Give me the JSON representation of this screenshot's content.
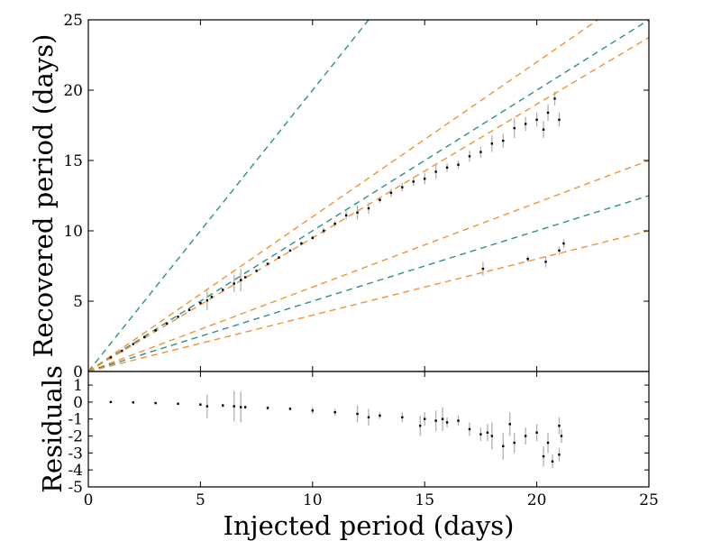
{
  "chart_data": {
    "type": "scatter",
    "xlabel": "Injected period (days)",
    "grid": false,
    "legend": "none",
    "panels": [
      {
        "id": "main",
        "ylabel": "Recovered period (days)",
        "xlim": [
          0,
          25
        ],
        "ylim": [
          0,
          25
        ],
        "xticks": [
          0,
          5,
          10,
          15,
          20,
          25
        ],
        "yticks": [
          0,
          5,
          10,
          15,
          20,
          25
        ],
        "reference_lines": [
          {
            "slope": 2.0,
            "color": "#2a9090"
          },
          {
            "slope": 1.1,
            "color": "#f29233"
          },
          {
            "slope": 1.0,
            "color": "#2a9090"
          },
          {
            "slope": 0.95,
            "color": "#f29233"
          },
          {
            "slope": 0.6,
            "color": "#f29233"
          },
          {
            "slope": 0.5,
            "color": "#2a9090"
          },
          {
            "slope": 0.4,
            "color": "#f29233"
          }
        ],
        "points": [
          [
            1.0,
            1.0,
            0.05
          ],
          [
            1.5,
            1.47,
            0.05
          ],
          [
            2.0,
            1.95,
            0.05
          ],
          [
            2.5,
            2.44,
            0.05
          ],
          [
            3.0,
            2.92,
            0.06
          ],
          [
            3.5,
            3.41,
            0.06
          ],
          [
            4.0,
            3.89,
            0.07
          ],
          [
            4.5,
            4.38,
            0.07
          ],
          [
            5.0,
            4.86,
            0.08
          ],
          [
            5.3,
            5.05,
            0.7
          ],
          [
            5.5,
            5.3,
            0.1
          ],
          [
            6.0,
            5.8,
            0.1
          ],
          [
            6.5,
            6.25,
            0.6
          ],
          [
            6.8,
            6.5,
            0.8
          ],
          [
            7.0,
            6.7,
            0.1
          ],
          [
            7.5,
            7.15,
            0.1
          ],
          [
            8.0,
            7.65,
            0.1
          ],
          [
            8.5,
            8.1,
            0.1
          ],
          [
            9.0,
            8.6,
            0.1
          ],
          [
            9.5,
            9.1,
            0.15
          ],
          [
            10.0,
            9.5,
            0.15
          ],
          [
            10.5,
            10.0,
            0.2
          ],
          [
            11.0,
            10.5,
            0.2
          ],
          [
            11.5,
            11.1,
            0.3
          ],
          [
            12.0,
            11.3,
            0.5
          ],
          [
            12.5,
            11.6,
            0.4
          ],
          [
            13.0,
            12.2,
            0.2
          ],
          [
            13.5,
            12.7,
            0.3
          ],
          [
            14.0,
            13.1,
            0.3
          ],
          [
            14.5,
            13.5,
            0.3
          ],
          [
            15.0,
            13.7,
            0.4
          ],
          [
            15.5,
            14.2,
            0.5
          ],
          [
            16.0,
            14.5,
            0.3
          ],
          [
            16.5,
            14.7,
            0.3
          ],
          [
            17.0,
            15.3,
            0.4
          ],
          [
            17.5,
            15.6,
            0.4
          ],
          [
            18.0,
            16.2,
            0.6
          ],
          [
            18.5,
            16.4,
            0.5
          ],
          [
            19.0,
            17.3,
            0.7
          ],
          [
            19.5,
            17.6,
            0.5
          ],
          [
            20.0,
            17.9,
            0.5
          ],
          [
            20.3,
            17.2,
            0.6
          ],
          [
            20.5,
            18.4,
            0.6
          ],
          [
            20.8,
            19.4,
            0.5
          ],
          [
            21.0,
            17.9,
            0.5
          ],
          [
            17.6,
            7.3,
            0.5
          ],
          [
            19.6,
            8.0,
            0.2
          ],
          [
            20.4,
            7.8,
            0.4
          ],
          [
            21.0,
            8.6,
            0.3
          ],
          [
            21.2,
            9.1,
            0.3
          ]
        ]
      },
      {
        "id": "residuals",
        "ylabel": "Residuals",
        "xlim": [
          0,
          25
        ],
        "ylim": [
          -5,
          1.8
        ],
        "yticks": [
          1,
          0,
          -1,
          -2,
          -3,
          -4,
          -5
        ],
        "points": [
          [
            1.0,
            0.0,
            0.05
          ],
          [
            2.0,
            -0.02,
            0.05
          ],
          [
            3.0,
            -0.06,
            0.06
          ],
          [
            4.0,
            -0.1,
            0.07
          ],
          [
            5.0,
            -0.15,
            0.08
          ],
          [
            5.3,
            -0.25,
            0.7
          ],
          [
            6.0,
            -0.2,
            0.1
          ],
          [
            6.5,
            -0.25,
            0.9
          ],
          [
            6.8,
            -0.3,
            0.9
          ],
          [
            7.0,
            -0.3,
            0.1
          ],
          [
            8.0,
            -0.35,
            0.1
          ],
          [
            9.0,
            -0.4,
            0.1
          ],
          [
            10.0,
            -0.5,
            0.2
          ],
          [
            11.0,
            -0.6,
            0.2
          ],
          [
            12.0,
            -0.7,
            0.5
          ],
          [
            12.5,
            -0.9,
            0.5
          ],
          [
            13.0,
            -0.8,
            0.2
          ],
          [
            14.0,
            -0.9,
            0.3
          ],
          [
            14.8,
            -1.4,
            0.6
          ],
          [
            15.0,
            -1.0,
            0.4
          ],
          [
            15.5,
            -1.1,
            0.6
          ],
          [
            15.8,
            -1.0,
            0.7
          ],
          [
            16.0,
            -1.2,
            0.3
          ],
          [
            16.5,
            -1.1,
            0.3
          ],
          [
            17.0,
            -1.6,
            0.4
          ],
          [
            17.5,
            -1.9,
            0.4
          ],
          [
            17.8,
            -1.8,
            0.5
          ],
          [
            18.0,
            -2.0,
            0.8
          ],
          [
            18.5,
            -2.6,
            0.8
          ],
          [
            18.8,
            -1.3,
            0.7
          ],
          [
            19.0,
            -2.4,
            0.6
          ],
          [
            19.5,
            -2.0,
            0.5
          ],
          [
            20.0,
            -1.8,
            0.5
          ],
          [
            20.3,
            -3.2,
            0.6
          ],
          [
            20.5,
            -2.4,
            0.6
          ],
          [
            20.7,
            -3.5,
            0.4
          ],
          [
            21.0,
            -1.4,
            0.5
          ],
          [
            21.1,
            -2.0,
            0.4
          ],
          [
            21.0,
            -3.1,
            0.4
          ]
        ]
      }
    ]
  }
}
